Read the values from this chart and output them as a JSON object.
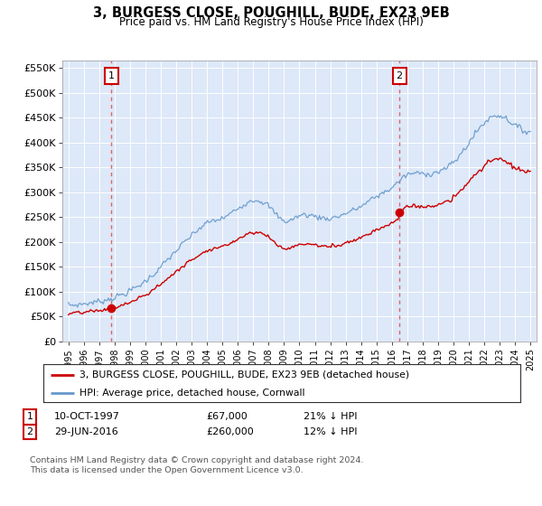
{
  "title": "3, BURGESS CLOSE, POUGHILL, BUDE, EX23 9EB",
  "subtitle": "Price paid vs. HM Land Registry's House Price Index (HPI)",
  "background_color": "#dde8f8",
  "plot_bg_color": "#dde8f8",
  "ylabel_ticks": [
    "£0",
    "£50K",
    "£100K",
    "£150K",
    "£200K",
    "£250K",
    "£300K",
    "£350K",
    "£400K",
    "£450K",
    "£500K",
    "£550K"
  ],
  "ylim": [
    0,
    570000
  ],
  "xlim_start": 1994.6,
  "xlim_end": 2025.4,
  "sale1_date": 1997.78,
  "sale1_price": 67000,
  "sale2_date": 2016.49,
  "sale2_price": 260000,
  "legend_label1": "3, BURGESS CLOSE, POUGHILL, BUDE, EX23 9EB (detached house)",
  "legend_label2": "HPI: Average price, detached house, Cornwall",
  "annotation1": [
    "1",
    "10-OCT-1997",
    "£67,000",
    "21% ↓ HPI"
  ],
  "annotation2": [
    "2",
    "29-JUN-2016",
    "£260,000",
    "12% ↓ HPI"
  ],
  "footer": "Contains HM Land Registry data © Crown copyright and database right 2024.\nThis data is licensed under the Open Government Licence v3.0.",
  "line_color_sale": "#cc0000",
  "line_color_hpi": "#6699cc",
  "dot_color": "#cc0000",
  "hpi_knots_x": [
    1995,
    1996,
    1997,
    1998,
    1999,
    2000,
    2001,
    2002,
    2003,
    2004,
    2005,
    2006,
    2007,
    2008,
    2009,
    2010,
    2011,
    2012,
    2013,
    2014,
    2015,
    2016,
    2017,
    2018,
    2019,
    2020,
    2021,
    2022,
    2023,
    2024,
    2025
  ],
  "hpi_knots_y": [
    72000,
    76000,
    81000,
    89000,
    102000,
    122000,
    150000,
    183000,
    213000,
    238000,
    248000,
    268000,
    285000,
    272000,
    243000,
    253000,
    252000,
    248000,
    258000,
    272000,
    292000,
    310000,
    335000,
    338000,
    342000,
    360000,
    400000,
    440000,
    455000,
    435000,
    425000
  ]
}
